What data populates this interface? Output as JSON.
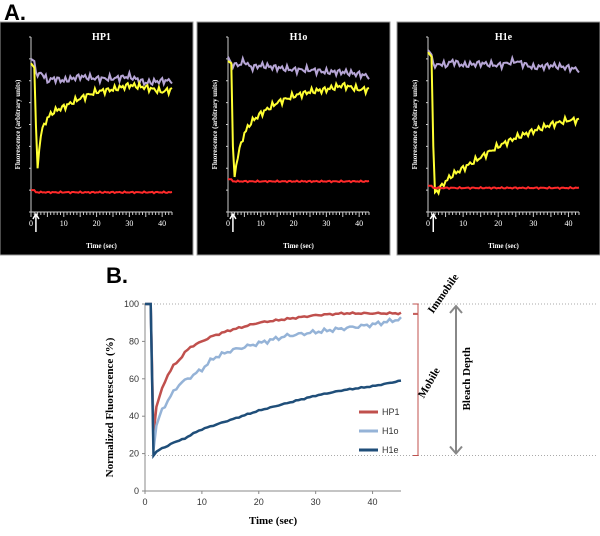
{
  "panel_labels": {
    "a": "A.",
    "b": "B."
  },
  "chart_data": [
    {
      "type": "line",
      "panel": "A",
      "title": "HP1",
      "xlabel": "Time (sec)",
      "ylabel": "Fluorescence (arbitrary units)",
      "xlim": [
        0,
        43
      ],
      "ylim": [
        0,
        8
      ],
      "xticks": [
        0,
        10,
        20,
        30,
        40
      ],
      "background": "#000000",
      "bleach_marker": "up-arrow at t=1.5",
      "x": [
        0,
        1,
        1.5,
        2,
        3,
        5,
        7,
        10,
        15,
        20,
        25,
        30,
        35,
        40,
        43
      ],
      "series": [
        {
          "color": "#b7a6d6",
          "values": [
            7.0,
            6.9,
            6.4,
            6.2,
            6.4,
            6.0,
            6.1,
            6.0,
            6.2,
            6.1,
            6.1,
            6.2,
            5.9,
            6.0,
            6.0
          ]
        },
        {
          "color": "#ffff33",
          "values": [
            6.8,
            6.6,
            4.0,
            2.0,
            3.6,
            4.3,
            4.6,
            4.8,
            5.2,
            5.5,
            5.6,
            5.8,
            5.7,
            5.5,
            5.6
          ]
        },
        {
          "color": "#ff2a2a",
          "values": [
            1.0,
            1.0,
            0.9,
            0.9,
            0.9,
            0.9,
            0.9,
            0.9,
            0.9,
            0.9,
            0.9,
            0.9,
            0.9,
            0.9,
            0.9
          ]
        }
      ]
    },
    {
      "type": "line",
      "panel": "A",
      "title": "H1o",
      "xlabel": "Time (sec)",
      "ylabel": "Fluorescence (arbitrary units)",
      "xlim": [
        0,
        43
      ],
      "ylim": [
        0,
        8
      ],
      "xticks": [
        0,
        10,
        20,
        30,
        40
      ],
      "background": "#000000",
      "bleach_marker": "up-arrow at t=1.5",
      "x": [
        0,
        1,
        1.5,
        2,
        3,
        5,
        7,
        10,
        15,
        20,
        25,
        30,
        35,
        40,
        43
      ],
      "series": [
        {
          "color": "#b7a6d6",
          "values": [
            7.1,
            6.8,
            6.6,
            6.8,
            6.7,
            6.9,
            6.6,
            6.7,
            6.6,
            6.5,
            6.5,
            6.4,
            6.4,
            6.3,
            6.2
          ]
        },
        {
          "color": "#ffff33",
          "values": [
            6.9,
            6.8,
            3.0,
            1.6,
            2.6,
            3.6,
            4.1,
            4.5,
            5.0,
            5.3,
            5.5,
            5.6,
            5.8,
            5.6,
            5.6
          ]
        },
        {
          "color": "#ff2a2a",
          "values": [
            1.5,
            1.5,
            1.4,
            1.4,
            1.4,
            1.4,
            1.4,
            1.4,
            1.4,
            1.4,
            1.4,
            1.4,
            1.4,
            1.4,
            1.4
          ]
        }
      ]
    },
    {
      "type": "line",
      "panel": "A",
      "title": "H1e",
      "xlabel": "Time (sec)",
      "ylabel": "Fluorescence (arbitrary units)",
      "xlim": [
        0,
        43
      ],
      "ylim": [
        0,
        8
      ],
      "xticks": [
        0,
        10,
        20,
        30,
        40
      ],
      "background": "#000000",
      "bleach_marker": "up-arrow at t=1.5",
      "x": [
        0,
        1,
        1.5,
        2,
        3,
        5,
        7,
        10,
        15,
        20,
        25,
        30,
        35,
        40,
        43
      ],
      "series": [
        {
          "color": "#b7a6d6",
          "values": [
            7.4,
            7.2,
            6.8,
            6.6,
            6.8,
            6.7,
            6.9,
            6.7,
            6.8,
            6.7,
            6.9,
            6.6,
            6.7,
            6.6,
            6.5
          ]
        },
        {
          "color": "#ffff33",
          "values": [
            7.3,
            7.1,
            3.0,
            0.9,
            1.0,
            1.4,
            1.7,
            2.0,
            2.5,
            3.0,
            3.4,
            3.7,
            4.0,
            4.2,
            4.2
          ]
        },
        {
          "color": "#ff2a2a",
          "values": [
            1.2,
            1.2,
            1.1,
            1.1,
            1.1,
            1.1,
            1.1,
            1.1,
            1.1,
            1.1,
            1.1,
            1.1,
            1.1,
            1.1,
            1.1
          ]
        }
      ]
    },
    {
      "type": "line",
      "panel": "B",
      "xlabel": "Time (sec)",
      "ylabel": "Normalized Fluorescence (%)",
      "xlim": [
        0,
        45
      ],
      "ylim": [
        0,
        100
      ],
      "xticks": [
        0,
        10,
        20,
        30,
        40
      ],
      "yticks": [
        0,
        20,
        40,
        60,
        80,
        100
      ],
      "legend": "right-middle",
      "x": [
        0,
        1,
        1.5,
        2,
        3,
        4,
        5,
        6,
        7,
        8,
        10,
        12,
        15,
        20,
        25,
        30,
        35,
        40,
        45
      ],
      "series": [
        {
          "name": "HP1",
          "color": "#c0504d",
          "values": [
            100,
            100,
            30,
            45,
            55,
            62,
            67,
            70,
            74,
            77,
            80,
            83,
            86,
            90,
            92,
            94,
            95,
            95,
            95
          ]
        },
        {
          "name": "H1o",
          "color": "#95b3d7",
          "values": [
            100,
            100,
            22,
            35,
            44,
            48,
            53,
            57,
            59,
            61,
            65,
            71,
            75,
            79,
            83,
            85,
            87,
            89,
            92
          ]
        },
        {
          "name": "H1e",
          "color": "#1f4e79",
          "values": [
            100,
            100,
            19,
            21,
            23,
            24,
            26,
            27,
            28,
            30,
            33,
            35,
            38,
            43,
            47,
            51,
            54,
            56,
            59
          ]
        }
      ],
      "annotations": {
        "immobile_label": "Immobile",
        "mobile_label": "Mobile",
        "bleach_depth_label": "Bleach Depth",
        "plateau_level": 95,
        "bleach_level": 19,
        "bracket_color": "#c0504d",
        "arrow_color": "#888888"
      }
    }
  ]
}
